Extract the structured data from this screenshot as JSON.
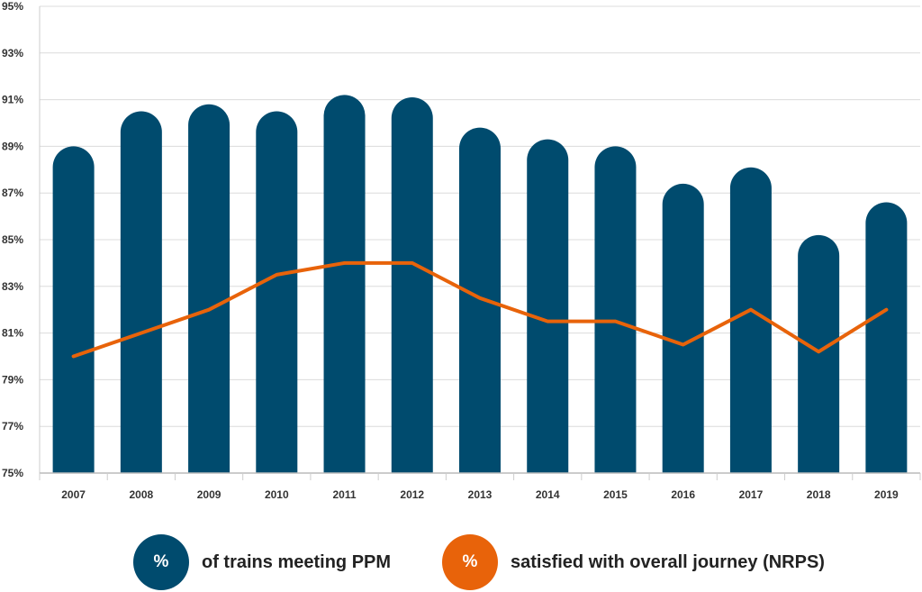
{
  "chart_data": {
    "type": "bar",
    "categories": [
      "2007",
      "2008",
      "2009",
      "2010",
      "2011",
      "2012",
      "2013",
      "2014",
      "2015",
      "2016",
      "2017",
      "2018",
      "2019"
    ],
    "series": [
      {
        "name": "of trains meeting PPM",
        "type": "bar",
        "color": "#004b6e",
        "values": [
          89.0,
          90.5,
          90.8,
          90.5,
          91.2,
          91.1,
          89.8,
          89.3,
          89.0,
          87.4,
          88.1,
          85.2,
          86.6
        ]
      },
      {
        "name": "satisfied with overall journey (NRPS)",
        "type": "line",
        "color": "#e8630a",
        "values": [
          80.0,
          81.0,
          82.0,
          83.5,
          84.0,
          84.0,
          82.5,
          81.5,
          81.5,
          80.5,
          82.0,
          80.2,
          82.0
        ]
      }
    ],
    "yticks": [
      "75%",
      "77%",
      "79%",
      "81%",
      "83%",
      "85%",
      "87%",
      "89%",
      "91%",
      "93%",
      "95%"
    ],
    "ylim": [
      75,
      95
    ],
    "grid": true,
    "legend_position": "bottom"
  },
  "legend": {
    "items": [
      {
        "symbol": "%",
        "label": "of trains meeting PPM",
        "color": "#004b6e"
      },
      {
        "symbol": "%",
        "label": "satisfied with overall journey (NRPS)",
        "color": "#e8630a"
      }
    ]
  }
}
